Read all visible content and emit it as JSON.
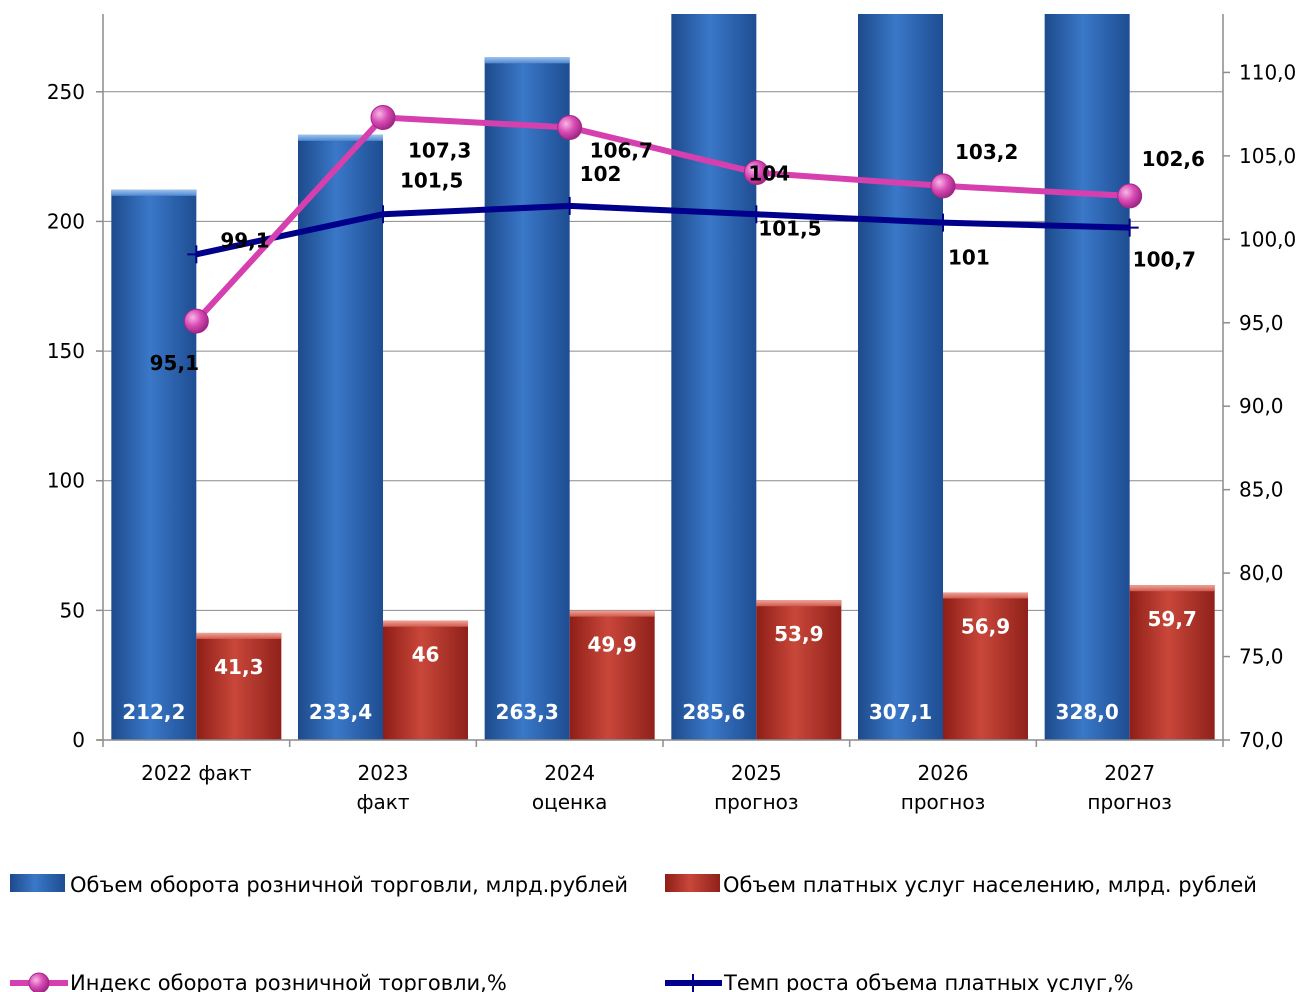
{
  "chart_data": {
    "type": "bar",
    "categories": [
      [
        "2022 факт"
      ],
      [
        "2023",
        "факт"
      ],
      [
        "2024",
        "оценка"
      ],
      [
        "2025",
        "прогноз"
      ],
      [
        "2026",
        "прогноз"
      ],
      [
        "2027",
        "прогноз"
      ]
    ],
    "y_left": {
      "min": 0,
      "max": 280,
      "ticks": [
        "0",
        "50",
        "100",
        "150",
        "200",
        "250"
      ]
    },
    "y_right": {
      "min": 70,
      "max": 113.5,
      "ticks": [
        "70,0",
        "75,0",
        "80,0",
        "85,0",
        "90,0",
        "95,0",
        "100,0",
        "105,0",
        "110,0"
      ]
    },
    "grid": true,
    "legend_position": "bottom",
    "bar_series": [
      {
        "name": "Объем оборота розничной торговли, млрд.рублей",
        "color": "#2f65b1",
        "axis": "left",
        "values": [
          212.2,
          233.4,
          263.3,
          285.6,
          307.1,
          328.0
        ],
        "labels": [
          "212,2",
          "233,4",
          "263,3",
          "285,6",
          "307,1",
          "328,0"
        ]
      },
      {
        "name": "Объем платных услуг населению, млрд. рублей",
        "color": "#c0392b",
        "axis": "left",
        "values": [
          41.3,
          46,
          49.9,
          53.9,
          56.9,
          59.7
        ],
        "labels": [
          "41,3",
          "46",
          "49,9",
          "53,9",
          "56,9",
          "59,7"
        ]
      }
    ],
    "line_series": [
      {
        "name": "Индекс оборота розничной торговли,%",
        "color": "#d63fae",
        "axis": "right",
        "marker": "circle",
        "values": [
          95.1,
          107.3,
          106.7,
          104,
          103.2,
          102.6
        ],
        "labels": [
          "95,1",
          "107,3",
          "106,7",
          "104",
          "103,2",
          "102,6"
        ]
      },
      {
        "name": "Темп роста объема платных услуг,%",
        "color": "#00008b",
        "axis": "right",
        "marker": "plus",
        "values": [
          99.1,
          101.5,
          102,
          101.5,
          101,
          100.7
        ],
        "labels": [
          "99,1",
          "101,5",
          "102",
          "101,5",
          "101",
          "100,7"
        ]
      }
    ]
  }
}
